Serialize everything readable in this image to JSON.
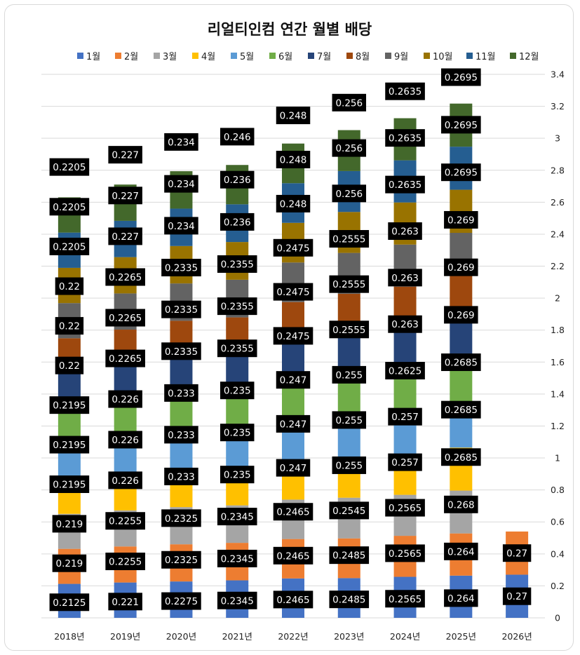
{
  "chart_data": {
    "type": "bar",
    "stacked": true,
    "title": "리얼티인컴 연간 월별 배당",
    "categories": [
      "2018년",
      "2019년",
      "2020년",
      "2021년",
      "2022년",
      "2023년",
      "2024년",
      "2025년",
      "2026년"
    ],
    "series": [
      {
        "name": "1월",
        "color": "#4472C4",
        "values": [
          0.2125,
          0.221,
          0.2275,
          0.2345,
          0.2465,
          0.2485,
          0.2565,
          0.264,
          0.27
        ]
      },
      {
        "name": "2월",
        "color": "#ED7D31",
        "values": [
          0.219,
          0.2255,
          0.2325,
          0.2345,
          0.2465,
          0.2485,
          0.2565,
          0.264,
          0.27
        ]
      },
      {
        "name": "3월",
        "color": "#A5A5A5",
        "values": [
          0.219,
          0.2255,
          0.2325,
          0.2345,
          0.2465,
          0.2545,
          0.2565,
          0.268,
          null
        ]
      },
      {
        "name": "4월",
        "color": "#FFC000",
        "values": [
          0.2195,
          0.226,
          0.233,
          0.235,
          0.247,
          0.255,
          0.257,
          0.2685,
          null
        ]
      },
      {
        "name": "5월",
        "color": "#5B9BD5",
        "values": [
          0.2195,
          0.226,
          0.233,
          0.235,
          0.247,
          0.255,
          0.257,
          0.2685,
          null
        ]
      },
      {
        "name": "6월",
        "color": "#70AD47",
        "values": [
          0.2195,
          0.226,
          0.233,
          0.235,
          0.247,
          0.255,
          0.2625,
          0.2685,
          null
        ]
      },
      {
        "name": "7월",
        "color": "#264478",
        "values": [
          0.22,
          0.2265,
          0.2335,
          0.2355,
          0.2475,
          0.2555,
          0.263,
          0.269,
          null
        ]
      },
      {
        "name": "8월",
        "color": "#9E480E",
        "values": [
          0.22,
          0.2265,
          0.2335,
          0.2355,
          0.2475,
          0.2555,
          0.263,
          0.269,
          null
        ]
      },
      {
        "name": "9월",
        "color": "#636363",
        "values": [
          0.22,
          0.2265,
          0.2335,
          0.2355,
          0.2475,
          0.2555,
          0.263,
          0.269,
          null
        ]
      },
      {
        "name": "10월",
        "color": "#997300",
        "values": [
          0.2205,
          0.227,
          0.234,
          0.236,
          0.248,
          0.256,
          0.2635,
          0.2695,
          null
        ]
      },
      {
        "name": "11월",
        "color": "#255E91",
        "values": [
          0.2205,
          0.227,
          0.234,
          0.236,
          0.248,
          0.256,
          0.2635,
          0.2695,
          null
        ]
      },
      {
        "name": "12월",
        "color": "#43682B",
        "values": [
          0.2205,
          0.227,
          0.234,
          0.246,
          0.248,
          0.256,
          0.2635,
          0.2695,
          null
        ]
      }
    ],
    "ylim": [
      0,
      3.4
    ],
    "ytick_step": 0.2,
    "ytick_labels": [
      "0",
      "0.2",
      "0.4",
      "0.6",
      "0.8",
      "1",
      "1.2",
      "1.4",
      "1.6",
      "1.8",
      "2",
      "2.2",
      "2.4",
      "2.6",
      "2.8",
      "3",
      "3.2",
      "3.4"
    ],
    "y_axis_position": "right",
    "grid": true,
    "legend_position": "top",
    "data_labels": true
  }
}
